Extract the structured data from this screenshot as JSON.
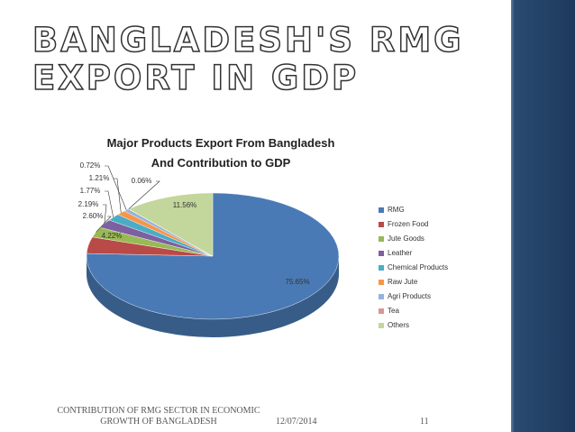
{
  "slide_title": "BANGLADESH'S RMG EXPORT IN GDP",
  "chart_data": {
    "type": "pie",
    "title": "Major Products Export From Bangladesh And Contribution to GDP",
    "categories": [
      "RMG",
      "Frozen Food",
      "Jute Goods",
      "Leather",
      "Chemical Products",
      "Raw Jute",
      "Agri Products",
      "Tea",
      "Others"
    ],
    "values": [
      75.65,
      4.22,
      2.6,
      2.19,
      1.77,
      1.21,
      0.72,
      0.06,
      11.56
    ],
    "value_labels": [
      "75.65%",
      "4.22%",
      "2.60%",
      "2.19%",
      "1.77%",
      "1.21%",
      "0.72%",
      "0.06%",
      "11.56%"
    ],
    "colors": [
      "#4a7ab5",
      "#b94a48",
      "#98b954",
      "#7d60a0",
      "#4bacc6",
      "#f79646",
      "#95b3d7",
      "#d99694",
      "#c3d69b"
    ],
    "legend": "right"
  },
  "footer": {
    "text": "CONTRIBUTION OF RMG SECTOR IN ECONOMIC GROWTH OF BANGLADESH",
    "date": "12/07/2014",
    "page": "11"
  }
}
